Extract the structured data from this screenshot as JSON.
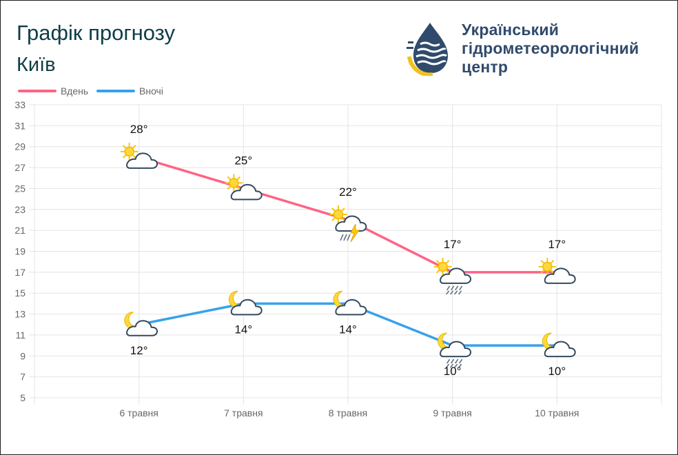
{
  "header": {
    "title": "Графік прогнозу",
    "city": "Київ"
  },
  "logo": {
    "lines": [
      "Український",
      "гідрометеорологічний",
      "центр"
    ],
    "colors": {
      "text": "#2f4a6b",
      "blue": "#2f4a6b",
      "yellow": "#f2c21b"
    }
  },
  "chart_data": {
    "type": "line",
    "categories": [
      "6 травня",
      "7 травня",
      "8 травня",
      "9 травня",
      "10 травня"
    ],
    "ylim": [
      5,
      33
    ],
    "yticks": [
      5,
      7,
      9,
      11,
      13,
      15,
      17,
      19,
      21,
      23,
      25,
      27,
      29,
      31,
      33
    ],
    "grid": true,
    "legend_position": "top-left",
    "series": [
      {
        "name": "Вдень",
        "color": "#ff6384",
        "values": [
          28,
          25,
          22,
          17,
          17
        ],
        "labels": [
          "28°",
          "25°",
          "22°",
          "17°",
          "17°"
        ],
        "icons": [
          "sun-cloud-icon",
          "sun-cloud-icon",
          "sun-cloud-thunder-icon",
          "sun-cloud-rain-icon",
          "sun-cloud-icon"
        ]
      },
      {
        "name": "Вночі",
        "color": "#36a2eb",
        "values": [
          12,
          14,
          14,
          10,
          10
        ],
        "labels": [
          "12°",
          "14°",
          "14°",
          "10°",
          "10°"
        ],
        "icons": [
          "moon-cloud-icon",
          "moon-cloud-icon",
          "moon-cloud-icon",
          "moon-cloud-rain-icon",
          "moon-cloud-icon"
        ]
      }
    ]
  }
}
